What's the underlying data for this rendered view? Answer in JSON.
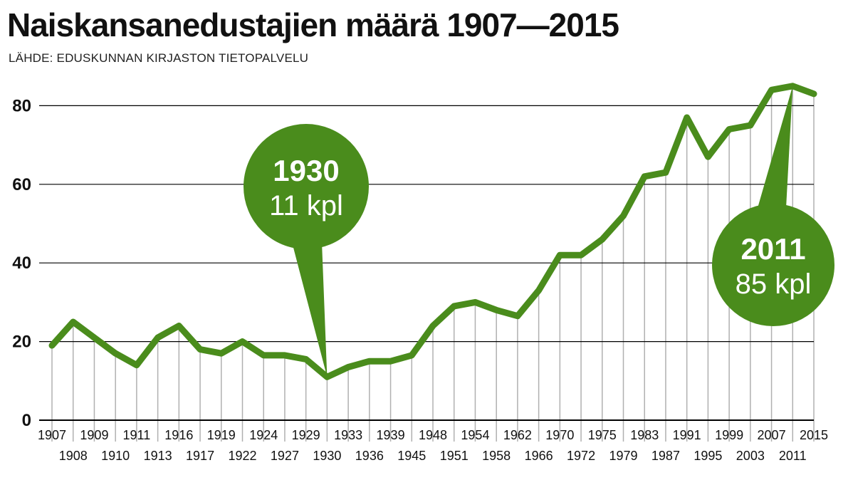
{
  "title": "Naiskansanedustajien määrä 1907—2015",
  "source": "LÄHDE: EDUSKUNNAN KIRJASTON TIETOPALVELU",
  "colors": {
    "line": "#4a8c1c",
    "callout": "#4a8c1c",
    "grid": "#000000",
    "vgrid": "#b0b0b0"
  },
  "chart_data": {
    "type": "line",
    "title": "Naiskansanedustajien määrä 1907—2015",
    "xlabel": "",
    "ylabel": "",
    "ylim": [
      0,
      85
    ],
    "yticks": [
      0,
      20,
      40,
      60,
      80
    ],
    "grid": true,
    "categories": [
      "1907",
      "1908",
      "1909",
      "1910",
      "1911",
      "1913",
      "1916",
      "1917",
      "1919",
      "1922",
      "1924",
      "1927",
      "1929",
      "1930",
      "1933",
      "1936",
      "1939",
      "1945",
      "1948",
      "1951",
      "1954",
      "1958",
      "1962",
      "1966",
      "1970",
      "1972",
      "1975",
      "1979",
      "1983",
      "1987",
      "1991",
      "1995",
      "1999",
      "2003",
      "2007",
      "2011",
      "2015"
    ],
    "series": [
      {
        "values": [
          19,
          25,
          21,
          17,
          14,
          21,
          24,
          18,
          17,
          20,
          16.5,
          16.5,
          15.5,
          11,
          13.5,
          15,
          15,
          16.5,
          24,
          29,
          30,
          28,
          26.5,
          33,
          42,
          42,
          46,
          52,
          62,
          63,
          77,
          67,
          74,
          75,
          84,
          85,
          83
        ]
      }
    ],
    "annotations": [
      {
        "year": "1930",
        "text": "11 kpl"
      },
      {
        "year": "2011",
        "text": "85 kpl"
      }
    ]
  }
}
